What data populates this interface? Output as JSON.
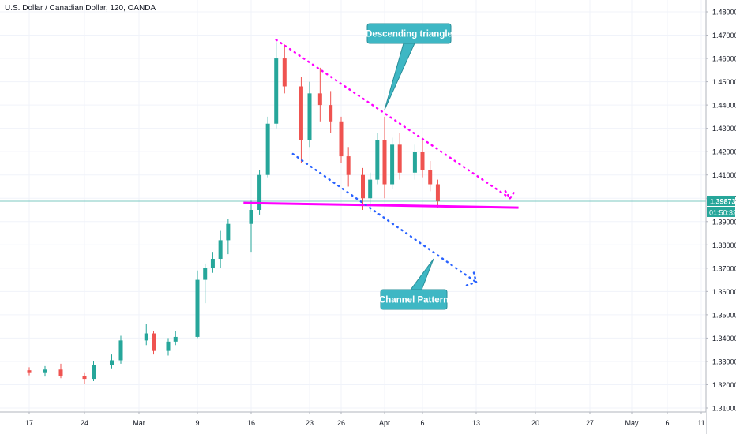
{
  "header": {
    "symbol_title": "U.S. Dollar / Canadian Dollar, 120, OANDA"
  },
  "price_axis": {
    "ticks": [
      "1.48000",
      "1.47000",
      "1.46000",
      "1.45000",
      "1.44000",
      "1.43000",
      "1.42000",
      "1.41000",
      "1.40000",
      "1.39000",
      "1.38000",
      "1.37000",
      "1.36000",
      "1.35000",
      "1.34000",
      "1.33000",
      "1.32000",
      "1.31000"
    ],
    "last_price": "1.39873",
    "countdown": "01:50:32"
  },
  "time_axis": {
    "labels": [
      "17",
      "24",
      "Mar",
      "9",
      "16",
      "23",
      "26",
      "Apr",
      "6",
      "13",
      "20",
      "27",
      "May",
      "6",
      "11"
    ]
  },
  "annotations": {
    "descending_triangle": "Descending triangle",
    "channel_pattern": "Channel Pattern"
  },
  "colors": {
    "up": "#26a69a",
    "down": "#ef5350",
    "support_line": "#ff00ff",
    "triangle_line": "#ff00ff",
    "channel_line": "#2962ff",
    "callout_bg": "#3eb7c4",
    "price_label": "#26a69a",
    "grid": "#f0f3fa"
  },
  "chart_data": {
    "type": "candlestick",
    "title": "U.S. Dollar / Canadian Dollar, 120, OANDA",
    "ylim": [
      1.305,
      1.485
    ],
    "grid": true,
    "series": [
      {
        "name": "",
        "points": [
          {
            "t": "Feb 13",
            "o": 1.3265,
            "h": 1.3285,
            "l": 1.3245,
            "c": 1.3262
          },
          {
            "t": "Feb 17",
            "o": 1.3262,
            "h": 1.3275,
            "l": 1.324,
            "c": 1.325
          },
          {
            "t": "Feb 19",
            "o": 1.325,
            "h": 1.328,
            "l": 1.3235,
            "c": 1.3265
          },
          {
            "t": "Feb 21",
            "o": 1.3265,
            "h": 1.329,
            "l": 1.3228,
            "c": 1.3238
          },
          {
            "t": "Feb 24",
            "o": 1.3238,
            "h": 1.325,
            "l": 1.3205,
            "c": 1.3225
          },
          {
            "t": "Feb 25",
            "o": 1.3225,
            "h": 1.33,
            "l": 1.3215,
            "c": 1.3285
          },
          {
            "t": "Feb 27",
            "o": 1.3285,
            "h": 1.333,
            "l": 1.327,
            "c": 1.3305
          },
          {
            "t": "Feb 28",
            "o": 1.3305,
            "h": 1.341,
            "l": 1.329,
            "c": 1.339
          },
          {
            "t": "Mar 2",
            "o": 1.339,
            "h": 1.346,
            "l": 1.337,
            "c": 1.342
          },
          {
            "t": "Mar 3",
            "o": 1.342,
            "h": 1.343,
            "l": 1.333,
            "c": 1.3345
          },
          {
            "t": "Mar 5",
            "o": 1.3345,
            "h": 1.34,
            "l": 1.3325,
            "c": 1.3385
          },
          {
            "t": "Mar 6",
            "o": 1.3385,
            "h": 1.343,
            "l": 1.337,
            "c": 1.3405
          },
          {
            "t": "Mar 9",
            "o": 1.3405,
            "h": 1.369,
            "l": 1.34,
            "c": 1.365
          },
          {
            "t": "Mar 10",
            "o": 1.365,
            "h": 1.372,
            "l": 1.355,
            "c": 1.37
          },
          {
            "t": "Mar 11",
            "o": 1.37,
            "h": 1.377,
            "l": 1.368,
            "c": 1.374
          },
          {
            "t": "Mar 12",
            "o": 1.374,
            "h": 1.386,
            "l": 1.37,
            "c": 1.382
          },
          {
            "t": "Mar 13",
            "o": 1.382,
            "h": 1.391,
            "l": 1.376,
            "c": 1.389
          },
          {
            "t": "Mar 16",
            "o": 1.389,
            "h": 1.399,
            "l": 1.377,
            "c": 1.395
          },
          {
            "t": "Mar 17",
            "o": 1.395,
            "h": 1.412,
            "l": 1.393,
            "c": 1.41
          },
          {
            "t": "Mar 18",
            "o": 1.41,
            "h": 1.435,
            "l": 1.409,
            "c": 1.432
          },
          {
            "t": "Mar 19",
            "o": 1.432,
            "h": 1.467,
            "l": 1.43,
            "c": 1.46
          },
          {
            "t": "Mar 20",
            "o": 1.46,
            "h": 1.466,
            "l": 1.445,
            "c": 1.448
          },
          {
            "t": "Mar 22",
            "o": 1.448,
            "h": 1.452,
            "l": 1.415,
            "c": 1.425
          },
          {
            "t": "Mar 23",
            "o": 1.425,
            "h": 1.45,
            "l": 1.422,
            "c": 1.445
          },
          {
            "t": "Mar 24",
            "o": 1.445,
            "h": 1.456,
            "l": 1.433,
            "c": 1.44
          },
          {
            "t": "Mar 25",
            "o": 1.44,
            "h": 1.446,
            "l": 1.428,
            "c": 1.433
          },
          {
            "t": "Mar 26",
            "o": 1.433,
            "h": 1.435,
            "l": 1.415,
            "c": 1.418
          },
          {
            "t": "Mar 27",
            "o": 1.418,
            "h": 1.422,
            "l": 1.405,
            "c": 1.41
          },
          {
            "t": "Mar 29",
            "o": 1.41,
            "h": 1.413,
            "l": 1.395,
            "c": 1.4
          },
          {
            "t": "Mar 30",
            "o": 1.4,
            "h": 1.411,
            "l": 1.394,
            "c": 1.408
          },
          {
            "t": "Mar 31",
            "o": 1.408,
            "h": 1.428,
            "l": 1.406,
            "c": 1.425
          },
          {
            "t": "Apr 1",
            "o": 1.425,
            "h": 1.435,
            "l": 1.4,
            "c": 1.406
          },
          {
            "t": "Apr 2",
            "o": 1.406,
            "h": 1.426,
            "l": 1.404,
            "c": 1.423
          },
          {
            "t": "Apr 3",
            "o": 1.423,
            "h": 1.428,
            "l": 1.408,
            "c": 1.411
          },
          {
            "t": "Apr 5",
            "o": 1.411,
            "h": 1.423,
            "l": 1.408,
            "c": 1.42
          },
          {
            "t": "Apr 6",
            "o": 1.42,
            "h": 1.426,
            "l": 1.409,
            "c": 1.412
          },
          {
            "t": "Apr 7",
            "o": 1.412,
            "h": 1.416,
            "l": 1.403,
            "c": 1.406
          },
          {
            "t": "Apr 8",
            "o": 1.406,
            "h": 1.408,
            "l": 1.396,
            "c": 1.3987
          }
        ]
      }
    ],
    "annotations": [
      {
        "text": "Descending triangle",
        "type": "callout"
      },
      {
        "text": "Channel Pattern",
        "type": "callout"
      },
      {
        "type": "support_line",
        "y": 1.397
      },
      {
        "type": "descending_trend_line",
        "from": {
          "t": "Mar 19",
          "y": 1.468
        },
        "to": {
          "t": "Apr 17",
          "y": 1.4
        }
      },
      {
        "type": "channel_line",
        "from": {
          "t": "Mar 21",
          "y": 1.419
        },
        "to": {
          "t": "Apr 13",
          "y": 1.364
        }
      }
    ]
  }
}
